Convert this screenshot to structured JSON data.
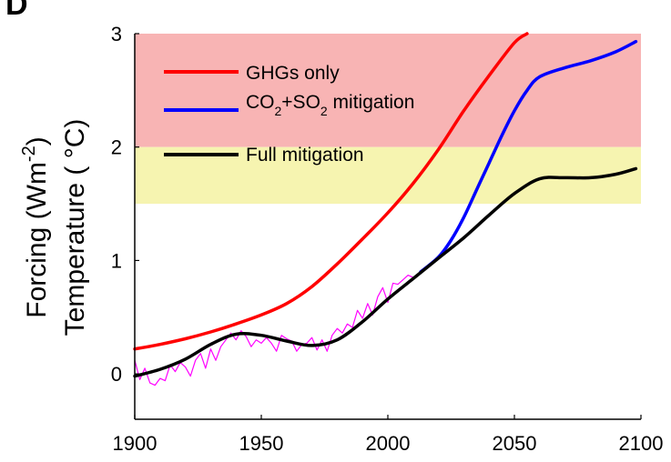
{
  "chart_data": {
    "type": "line",
    "panel_label": "D",
    "ylabel_line1": "Forcing (Wm",
    "ylabel_line1_sup": "-2",
    "ylabel_line1_end": ")",
    "ylabel_line2": "Temperature ( °C)",
    "xlim": [
      1900,
      2100
    ],
    "ylim": [
      -0.4,
      3
    ],
    "x_ticks": [
      1900,
      1950,
      2000,
      2050,
      2100
    ],
    "y_ticks": [
      0,
      1,
      2,
      3
    ],
    "bands": [
      {
        "name": "red zone",
        "from": 2.0,
        "to": 3.0,
        "color": "#f8b4b4"
      },
      {
        "name": "yellow zone",
        "from": 1.5,
        "to": 2.0,
        "color": "#f6f4b0"
      }
    ],
    "legend": {
      "placement": "top-left",
      "entries": [
        {
          "label": "GHGs only",
          "color": "#ff0000"
        },
        {
          "label_parts": [
            "CO",
            "2",
            "+SO",
            "2",
            " mitigation"
          ],
          "color": "#0000ff"
        },
        {
          "label": "Full mitigation",
          "color": "#000000"
        }
      ]
    },
    "series": [
      {
        "key": "ghg",
        "color": "#ff0000",
        "x": [
          1900,
          1910,
          1920,
          1930,
          1940,
          1950,
          1960,
          1970,
          1980,
          1990,
          2000,
          2010,
          2020,
          2030,
          2040,
          2050,
          2055
        ],
        "y": [
          0.22,
          0.26,
          0.31,
          0.37,
          0.44,
          0.52,
          0.62,
          0.77,
          0.97,
          1.19,
          1.42,
          1.68,
          1.98,
          2.32,
          2.63,
          2.92,
          3.0
        ]
      },
      {
        "key": "co2so2",
        "color": "#0000ff",
        "x": [
          2013,
          2020,
          2025,
          2030,
          2035,
          2040,
          2045,
          2050,
          2055,
          2060,
          2070,
          2080,
          2090,
          2098
        ],
        "y": [
          0.9,
          1.03,
          1.18,
          1.38,
          1.62,
          1.86,
          2.1,
          2.32,
          2.5,
          2.62,
          2.7,
          2.76,
          2.84,
          2.93
        ]
      },
      {
        "key": "full",
        "color": "#000000",
        "x": [
          1900,
          1910,
          1920,
          1930,
          1940,
          1950,
          1960,
          1970,
          1980,
          1990,
          2000,
          2010,
          2020,
          2030,
          2040,
          2050,
          2060,
          2070,
          2080,
          2090,
          2098
        ],
        "y": [
          -0.02,
          0.04,
          0.13,
          0.26,
          0.35,
          0.34,
          0.29,
          0.25,
          0.3,
          0.46,
          0.66,
          0.84,
          1.02,
          1.2,
          1.4,
          1.59,
          1.72,
          1.73,
          1.73,
          1.76,
          1.81
        ]
      },
      {
        "key": "observed",
        "color": "#ff00ff",
        "x": [
          1900,
          1902,
          1904,
          1906,
          1908,
          1910,
          1912,
          1914,
          1916,
          1918,
          1920,
          1922,
          1924,
          1926,
          1928,
          1930,
          1932,
          1934,
          1936,
          1938,
          1940,
          1942,
          1944,
          1946,
          1948,
          1950,
          1952,
          1954,
          1956,
          1958,
          1960,
          1962,
          1964,
          1966,
          1968,
          1970,
          1972,
          1974,
          1976,
          1978,
          1980,
          1982,
          1984,
          1986,
          1988,
          1990,
          1992,
          1994,
          1996,
          1998,
          2000,
          2002,
          2004,
          2006,
          2008,
          2010
        ],
        "y": [
          0.12,
          -0.05,
          0.05,
          -0.08,
          -0.1,
          -0.04,
          -0.06,
          0.08,
          0.02,
          0.1,
          0.06,
          -0.02,
          0.12,
          0.18,
          0.05,
          0.22,
          0.12,
          0.24,
          0.3,
          0.36,
          0.3,
          0.38,
          0.33,
          0.24,
          0.3,
          0.27,
          0.32,
          0.27,
          0.2,
          0.34,
          0.31,
          0.29,
          0.2,
          0.26,
          0.27,
          0.32,
          0.21,
          0.3,
          0.2,
          0.34,
          0.4,
          0.36,
          0.44,
          0.41,
          0.56,
          0.49,
          0.62,
          0.52,
          0.68,
          0.76,
          0.63,
          0.8,
          0.79,
          0.83,
          0.87,
          0.85
        ]
      }
    ]
  }
}
